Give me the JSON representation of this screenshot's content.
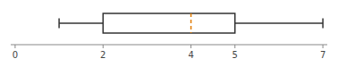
{
  "chart_data": {
    "type": "box",
    "orientation": "horizontal",
    "min": 1,
    "q1": 2,
    "median": 4,
    "q3": 5,
    "max": 7,
    "xlim": [
      -0.1,
      7.1
    ],
    "xticks": [
      0,
      2,
      4,
      5,
      7
    ],
    "tick_labels": "x",
    "line_style": "dashed"
  }
}
